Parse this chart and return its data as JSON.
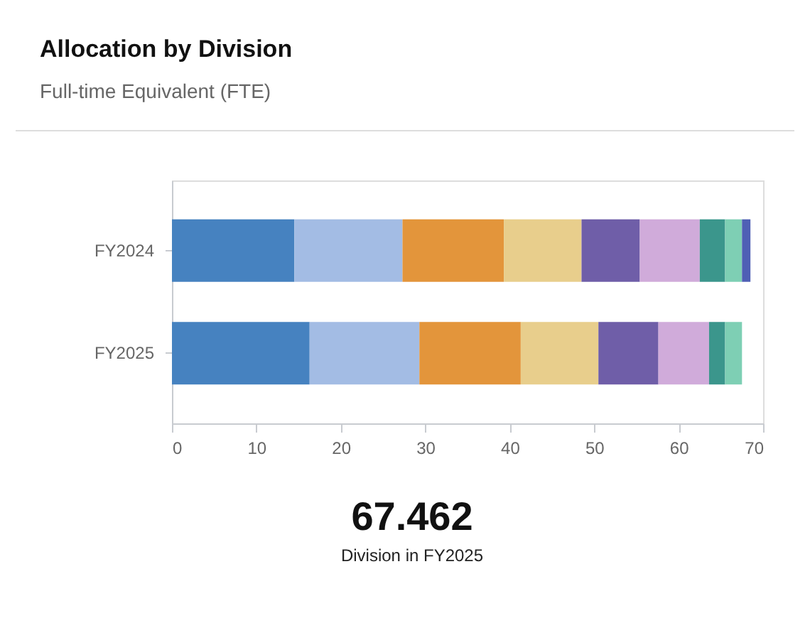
{
  "chart_data": {
    "type": "bar",
    "title": "Allocation by Division",
    "subtitle": "Full-time Equivalent (FTE)",
    "orientation": "horizontal",
    "stacked": true,
    "grid": false,
    "categories": [
      "FY2024",
      "FY2025"
    ],
    "xlim": [
      0,
      70
    ],
    "xticks": [
      0,
      10,
      20,
      30,
      40,
      50,
      60,
      70
    ],
    "series": [
      {
        "color": "#4682c0",
        "values": [
          14.5,
          16.3
        ]
      },
      {
        "color": "#a3bce4",
        "values": [
          12.8,
          13.0
        ]
      },
      {
        "color": "#e3953b",
        "values": [
          12.0,
          12.0
        ]
      },
      {
        "color": "#e8ce8c",
        "values": [
          9.2,
          9.2
        ]
      },
      {
        "color": "#6f5ea8",
        "values": [
          6.9,
          7.1
        ]
      },
      {
        "color": "#d0abda",
        "values": [
          7.1,
          6.0
        ]
      },
      {
        "color": "#3b968c",
        "values": [
          3.0,
          1.9
        ]
      },
      {
        "color": "#7ecfb4",
        "values": [
          2.0,
          2.0
        ]
      },
      {
        "color": "#4f5fb5",
        "values": [
          1.0,
          null
        ]
      }
    ],
    "annotations": [
      "67.462",
      "Division in FY2025"
    ]
  }
}
